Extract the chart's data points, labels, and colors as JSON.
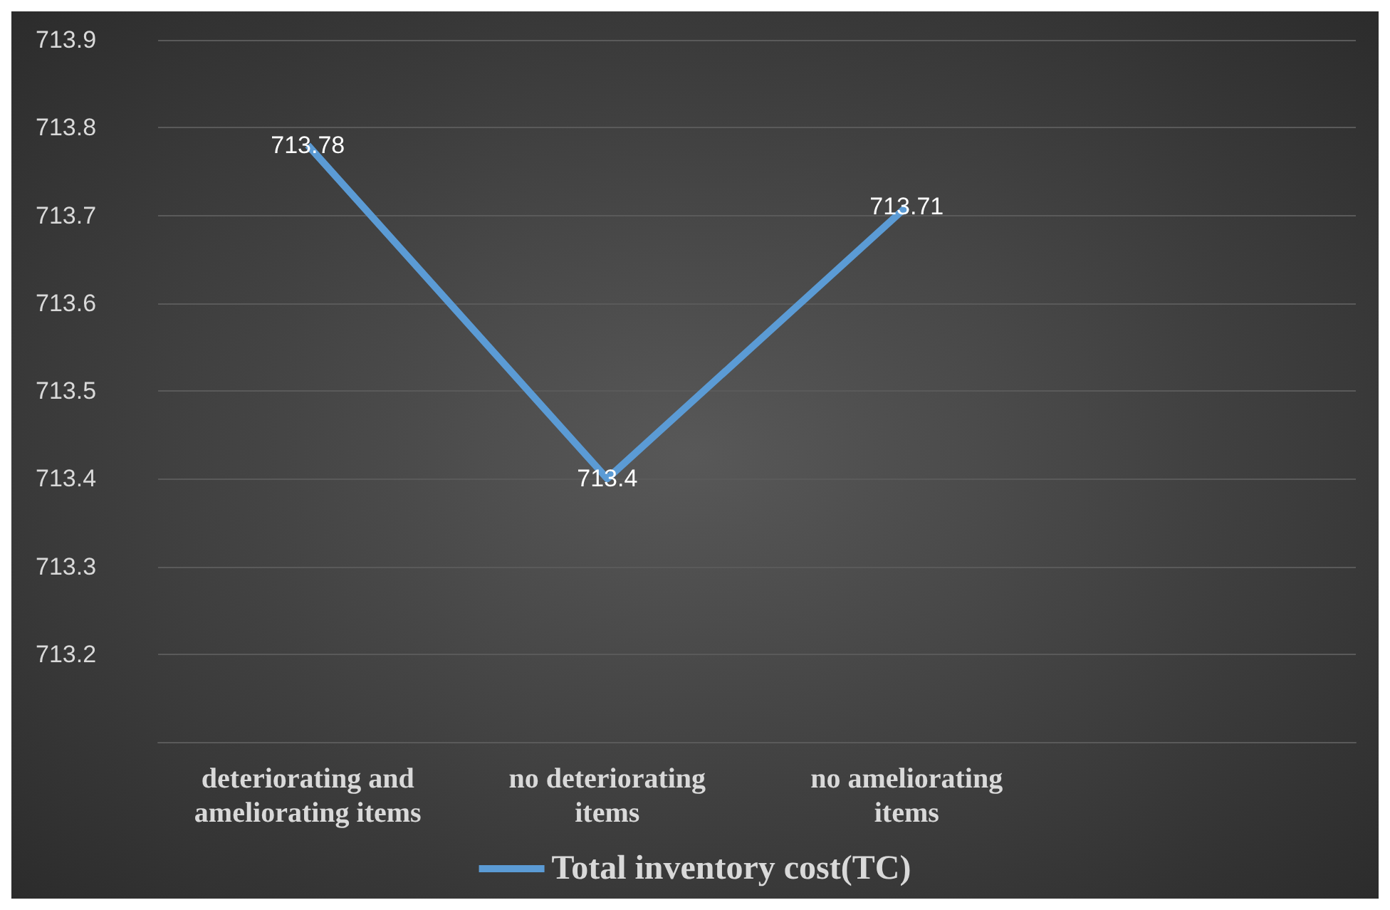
{
  "chart_data": {
    "type": "line",
    "categories": [
      "deteriorating and ameliorating items",
      "no deteriorating items",
      "no ameliorating items",
      null
    ],
    "series": [
      {
        "name": "Total inventory cost(TC)",
        "color": "#5b9bd5",
        "values": [
          713.78,
          713.4,
          713.71,
          null
        ]
      }
    ],
    "ylim": [
      713.1,
      713.9
    ],
    "yticks": [
      713.2,
      713.3,
      713.4,
      713.5,
      713.6,
      713.7,
      713.8,
      713.9
    ],
    "grid": "y",
    "legend": "bottom",
    "data_labels": true,
    "marker": "none"
  }
}
